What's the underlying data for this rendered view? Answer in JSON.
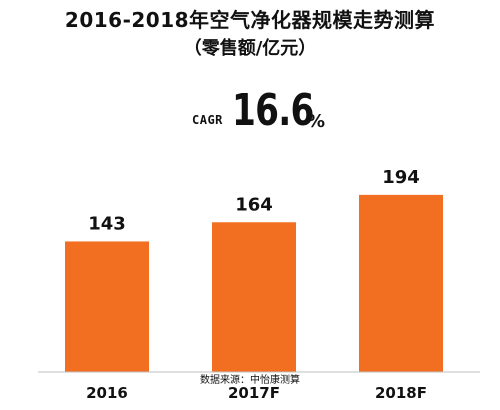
{
  "page": {
    "title": "2016-2018年空气净化器规模走势测算",
    "subtitle": "（零售额/亿元）"
  },
  "cagr": {
    "label": "CAGR",
    "value": "16.6",
    "unit": "%"
  },
  "source": "数据来源：中怡康测算",
  "chart_data": {
    "type": "bar",
    "categories": [
      "2016",
      "2017F",
      "2018F"
    ],
    "values": [
      143,
      164,
      194
    ],
    "title": "2016-2018年空气净化器规模走势测算",
    "subtitle": "（零售额/亿元）",
    "xlabel": "",
    "ylabel": "",
    "ylim": [
      0,
      230
    ],
    "grid": false,
    "legend": "none",
    "bar_color": "#f26f21",
    "show_data_labels": true
  }
}
